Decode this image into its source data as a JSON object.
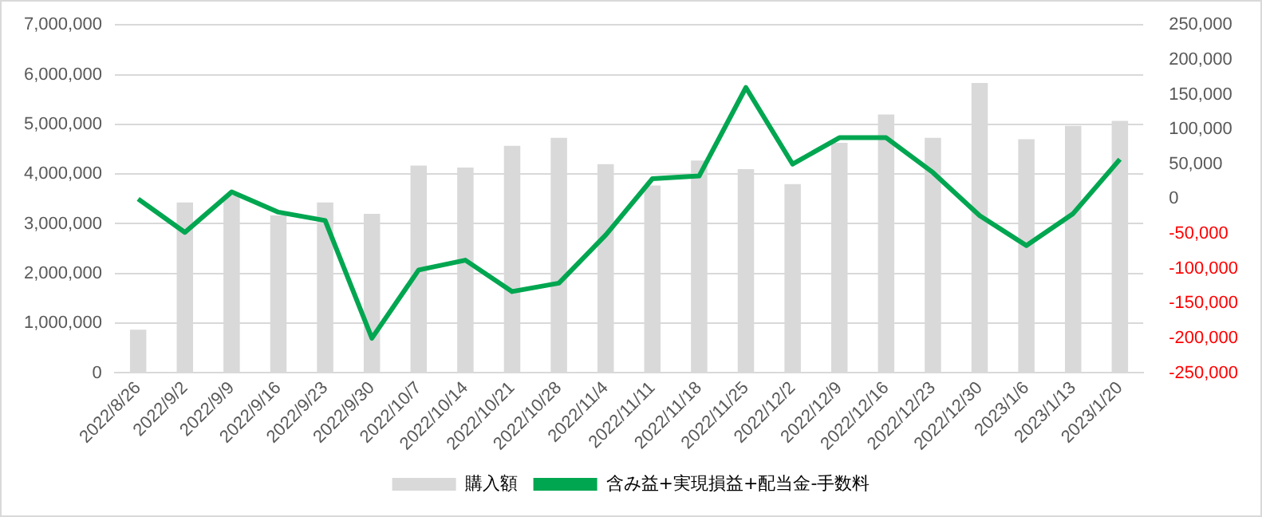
{
  "chart_data": {
    "type": "bar",
    "categories": [
      "2022/8/26",
      "2022/9/2",
      "2022/9/9",
      "2022/9/16",
      "2022/9/23",
      "2022/9/30",
      "2022/10/7",
      "2022/10/14",
      "2022/10/21",
      "2022/10/28",
      "2022/11/4",
      "2022/11/11",
      "2022/11/18",
      "2022/11/25",
      "2022/12/2",
      "2022/12/9",
      "2022/12/16",
      "2022/12/23",
      "2022/12/30",
      "2023/1/6",
      "2023/1/13",
      "2023/1/20"
    ],
    "series": [
      {
        "name": "購入額",
        "color": "#d9d9d9",
        "values": [
          870000,
          3430000,
          3570000,
          3170000,
          3430000,
          3200000,
          4170000,
          4130000,
          4570000,
          4730000,
          4200000,
          3770000,
          4270000,
          4100000,
          3800000,
          4630000,
          5200000,
          4730000,
          5830000,
          4700000,
          4970000,
          5070000
        ]
      },
      {
        "name": "含み益+実現損益+配当金-手数料",
        "type": "line",
        "axis": "y2",
        "color": "#00a650",
        "values": [
          0,
          -48000,
          10000,
          -19000,
          -31000,
          -200000,
          -102000,
          -88000,
          -133000,
          -121000,
          -52000,
          29000,
          33000,
          160000,
          50000,
          88000,
          88000,
          38000,
          -24000,
          -67000,
          -21000,
          57000
        ]
      }
    ],
    "ylim": [
      0,
      7000000
    ],
    "yticks": [
      0,
      {
        "value": 1000000,
        "label": "1,000,000"
      },
      {
        "value": 2000000,
        "label": "2,000,000"
      },
      {
        "value": 3000000,
        "label": "3,000,000"
      },
      {
        "value": 4000000,
        "label": "4,000,000"
      },
      {
        "value": 5000000,
        "label": "5,000,000"
      },
      {
        "value": 6000000,
        "label": "6,000,000"
      },
      {
        "value": 7000000,
        "label": "7,000,000"
      }
    ],
    "y2lim": [
      -250000,
      250000
    ],
    "y2ticks": [
      {
        "value": -250000,
        "label": "-250,000"
      },
      {
        "value": -200000,
        "label": "-200,000"
      },
      {
        "value": -150000,
        "label": "-150,000"
      },
      {
        "value": -100000,
        "label": "-100,000"
      },
      {
        "value": -50000,
        "label": "-50,000"
      },
      0,
      {
        "value": 50000,
        "label": "50,000"
      },
      {
        "value": 100000,
        "label": "100,000"
      },
      {
        "value": 150000,
        "label": "150,000"
      },
      {
        "value": 200000,
        "label": "200,000"
      },
      {
        "value": 250000,
        "label": "250,000"
      }
    ],
    "grid": "y",
    "legend": "bottom",
    "marker": "none"
  }
}
